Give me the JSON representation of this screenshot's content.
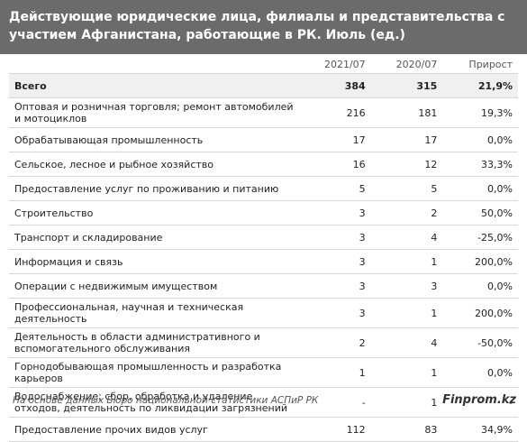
{
  "header": {
    "title": "Действующие юридические лица, филиалы и представительства с участием Афганистана, работающие в РК. Июль (ед.)"
  },
  "table": {
    "columns": [
      "",
      "2021/07",
      "2020/07",
      "Прирост"
    ],
    "rows": [
      [
        "Всего",
        "384",
        "315",
        "21,9%"
      ],
      [
        "Оптовая и розничная торговля; ремонт автомобилей и мотоциклов",
        "216",
        "181",
        "19,3%"
      ],
      [
        "Обрабатывающая промышленность",
        "17",
        "17",
        "0,0%"
      ],
      [
        "Сельское, лесное и рыбное хозяйство",
        "16",
        "12",
        "33,3%"
      ],
      [
        "Предоставление услуг по проживанию и питанию",
        "5",
        "5",
        "0,0%"
      ],
      [
        "Строительство",
        "3",
        "2",
        "50,0%"
      ],
      [
        "Транспорт и складирование",
        "3",
        "4",
        "-25,0%"
      ],
      [
        "Информация и связь",
        "3",
        "1",
        "200,0%"
      ],
      [
        "Операции с недвижимым имуществом",
        "3",
        "3",
        "0,0%"
      ],
      [
        "Профессиональная, научная и техническая деятельность",
        "3",
        "1",
        "200,0%"
      ],
      [
        "Деятельность в области административного и вспомогательного обслуживания",
        "2",
        "4",
        "-50,0%"
      ],
      [
        "Горнодобывающая промышленность и разработка карьеров",
        "1",
        "1",
        "0,0%"
      ],
      [
        "Водоснабжение; сбор, обработка и удаление отходов, деятельность по ликвидации загрязнений",
        "-",
        "1",
        "-"
      ],
      [
        "Предоставление прочих видов услуг",
        "112",
        "83",
        "34,9%"
      ]
    ]
  },
  "footer": {
    "source": "На основе данных Бюро национальной статистики АСПиР РК",
    "brand": "Finprom.kz"
  }
}
